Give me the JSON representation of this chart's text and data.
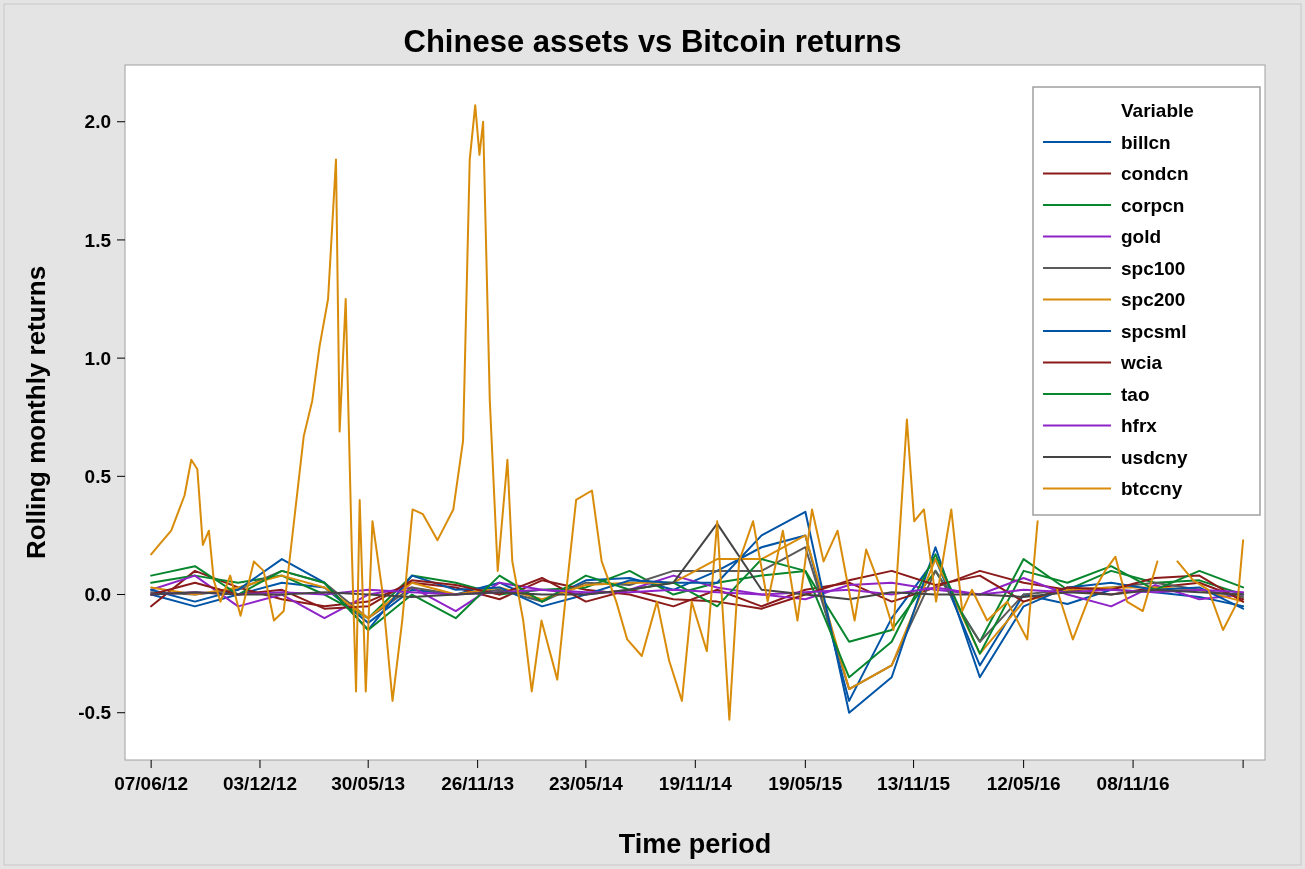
{
  "chart_data": {
    "type": "line",
    "title": "Chinese assets vs Bitcoin returns",
    "xlabel": "Time period",
    "ylabel": "Rolling monthly returns",
    "legend_title": "Variable",
    "legend": "top right",
    "grid": false,
    "marker": "none",
    "line_style": "solid",
    "xlim": [
      "2012-04-25",
      "2017-06-13"
    ],
    "ylim": [
      -0.7,
      2.24
    ],
    "xticks": [
      {
        "value": "2012-06-07",
        "label": "07/06/12"
      },
      {
        "value": "2012-12-03",
        "label": "03/12/12"
      },
      {
        "value": "2013-05-30",
        "label": "30/05/13"
      },
      {
        "value": "2013-11-26",
        "label": "26/11/13"
      },
      {
        "value": "2014-05-23",
        "label": "23/05/14"
      },
      {
        "value": "2014-11-19",
        "label": "19/11/14"
      },
      {
        "value": "2015-05-19",
        "label": "19/05/15"
      },
      {
        "value": "2015-11-13",
        "label": "13/11/15"
      },
      {
        "value": "2016-05-12",
        "label": "12/05/16"
      },
      {
        "value": "2016-11-08",
        "label": "08/11/16"
      },
      {
        "value": "2017-05-08",
        "label": null
      }
    ],
    "yticks": [
      -0.5,
      {
        "value": 0,
        "label": "0.0"
      },
      0.5,
      {
        "value": 1,
        "label": "1.0"
      },
      1.5,
      {
        "value": 2,
        "label": "2.0"
      }
    ],
    "x": [
      "2012-06-07",
      "2012-08-18",
      "2012-10-28",
      "2013-01-08",
      "2013-03-19",
      "2013-05-30",
      "2013-08-10",
      "2013-10-21",
      "2014-01-01",
      "2014-03-12",
      "2014-05-23",
      "2014-08-03",
      "2014-10-14",
      "2014-12-25",
      "2015-03-08",
      "2015-05-19",
      "2015-07-30",
      "2015-10-08",
      "2015-12-19",
      "2016-03-01",
      "2016-05-12",
      "2016-07-23",
      "2016-10-03",
      "2016-12-14",
      "2017-02-25",
      "2017-05-08"
    ],
    "series": [
      {
        "name": "billcn",
        "color": "#0054a6",
        "values": [
          0.0,
          -0.05,
          0.0,
          0.05,
          0.03,
          -0.12,
          0.02,
          0.0,
          0.05,
          -0.03,
          0.06,
          0.07,
          0.02,
          0.1,
          0.2,
          0.25,
          -0.45,
          -0.1,
          0.15,
          -0.3,
          0.0,
          -0.04,
          0.02,
          0.01,
          -0.01,
          -0.05
        ]
      },
      {
        "name": "condcn",
        "color": "#8b1a1a",
        "values": [
          -0.05,
          0.1,
          0.03,
          -0.02,
          -0.05,
          -0.03,
          0.05,
          0.03,
          -0.02,
          0.06,
          0.02,
          0.0,
          -0.05,
          0.02,
          -0.05,
          0.02,
          0.05,
          -0.03,
          0.03,
          0.1,
          0.05,
          0.02,
          0.0,
          0.03,
          0.05,
          -0.02
        ]
      },
      {
        "name": "corpcn",
        "color": "#08862d",
        "values": [
          0.05,
          0.08,
          0.05,
          0.08,
          0.0,
          -0.1,
          0.08,
          0.05,
          0.0,
          0.02,
          0.03,
          0.1,
          0.0,
          0.05,
          0.08,
          0.1,
          -0.2,
          -0.15,
          0.1,
          -0.2,
          0.15,
          0.02,
          0.1,
          0.05,
          0.06,
          0.0
        ]
      },
      {
        "name": "gold",
        "color": "#8e24c8",
        "values": [
          0.02,
          0.08,
          -0.05,
          0.0,
          -0.1,
          0.0,
          0.03,
          -0.07,
          0.05,
          0.02,
          0.0,
          0.02,
          0.08,
          0.03,
          0.0,
          -0.02,
          0.04,
          0.05,
          0.02,
          0.0,
          0.07,
          0.0,
          -0.05,
          0.04,
          -0.02,
          0.0
        ]
      },
      {
        "name": "spc100",
        "color": "#5a5a5a",
        "values": [
          0.01,
          0.0,
          0.02,
          0.1,
          0.05,
          -0.1,
          0.03,
          0.0,
          0.02,
          -0.03,
          0.05,
          0.04,
          0.1,
          0.1,
          0.1,
          0.2,
          -0.4,
          -0.3,
          0.1,
          -0.2,
          0.0,
          0.02,
          0.03,
          0.05,
          0.02,
          -0.01
        ]
      },
      {
        "name": "spc200",
        "color": "#d98c0a",
        "values": [
          0.03,
          0.0,
          0.03,
          0.08,
          0.03,
          -0.1,
          0.05,
          0.0,
          0.03,
          -0.02,
          0.04,
          0.05,
          0.05,
          0.15,
          0.15,
          0.25,
          -0.4,
          -0.3,
          0.15,
          -0.25,
          -0.03,
          0.02,
          0.03,
          0.03,
          0.02,
          -0.03
        ]
      },
      {
        "name": "spcsml",
        "color": "#0054a6",
        "values": [
          0.02,
          -0.03,
          0.02,
          0.15,
          0.05,
          -0.15,
          0.08,
          0.02,
          0.03,
          -0.05,
          0.0,
          0.06,
          0.05,
          0.05,
          0.25,
          0.35,
          -0.5,
          -0.35,
          0.2,
          -0.35,
          -0.05,
          0.03,
          0.05,
          0.02,
          0.03,
          -0.06
        ]
      },
      {
        "name": "wcia",
        "color": "#8b1a1a",
        "values": [
          0.0,
          0.05,
          0.0,
          0.02,
          -0.06,
          -0.05,
          0.06,
          0.04,
          0.0,
          0.07,
          -0.03,
          0.02,
          -0.02,
          -0.03,
          -0.06,
          0.0,
          0.06,
          0.1,
          0.04,
          0.08,
          -0.03,
          0.03,
          0.02,
          0.07,
          0.08,
          -0.03
        ]
      },
      {
        "name": "tao",
        "color": "#08862d",
        "values": [
          0.08,
          0.12,
          0.0,
          0.1,
          0.05,
          -0.15,
          0.0,
          -0.1,
          0.08,
          -0.03,
          0.08,
          0.02,
          0.05,
          -0.05,
          0.15,
          0.1,
          -0.35,
          -0.2,
          0.17,
          -0.25,
          0.1,
          0.05,
          0.12,
          0.02,
          0.1,
          0.03
        ]
      },
      {
        "name": "hfrx",
        "color": "#8e24c8",
        "values": [
          0.0,
          0.01,
          0.0,
          0.01,
          0.0,
          0.02,
          0.01,
          0.0,
          0.01,
          0.02,
          0.01,
          0.01,
          0.02,
          0.01,
          0.0,
          0.01,
          0.02,
          0.0,
          0.03,
          0.0,
          0.02,
          0.01,
          0.02,
          0.01,
          0.02,
          0.01
        ]
      },
      {
        "name": "usdcny",
        "color": "#444444",
        "values": [
          0.0,
          0.01,
          0.0,
          0.0,
          0.01,
          0.0,
          -0.01,
          0.0,
          0.01,
          0.0,
          0.0,
          0.02,
          0.05,
          0.3,
          0.02,
          0.0,
          -0.02,
          0.01,
          0.0,
          0.0,
          -0.01,
          0.01,
          0.0,
          0.02,
          0.01,
          0.0
        ]
      },
      {
        "name": "btccny",
        "color": "#d98c0a",
        "x": [
          "2012-06-07",
          "2012-06-20",
          "2012-07-10",
          "2012-08-01",
          "2012-08-12",
          "2012-08-22",
          "2012-08-31",
          "2012-09-10",
          "2012-09-18",
          "2012-09-29",
          "2012-10-15",
          "2012-11-01",
          "2012-11-23",
          "2012-12-09",
          "2012-12-26",
          "2013-01-11",
          "2013-01-28",
          "2013-02-13",
          "2013-02-27",
          "2013-03-11",
          "2013-03-25",
          "2013-04-07",
          "2013-04-13",
          "2013-04-23",
          "2013-05-03",
          "2013-05-10",
          "2013-05-16",
          "2013-05-26",
          "2013-06-06",
          "2013-06-22",
          "2013-07-09",
          "2013-07-25",
          "2013-08-11",
          "2013-08-28",
          "2013-09-21",
          "2013-10-17",
          "2013-11-02",
          "2013-11-13",
          "2013-11-22",
          "2013-11-29",
          "2013-12-05",
          "2013-12-16",
          "2013-12-29",
          "2014-01-14",
          "2014-01-22",
          "2014-02-09",
          "2014-02-23",
          "2014-03-11",
          "2014-04-06",
          "2014-04-21",
          "2014-05-07",
          "2014-06-02",
          "2014-06-18",
          "2014-07-12",
          "2014-07-30",
          "2014-08-23",
          "2014-09-17",
          "2014-10-07",
          "2014-10-28",
          "2014-11-13",
          "2014-12-08",
          "2014-12-25",
          "2015-01-14",
          "2015-01-30",
          "2015-02-22",
          "2015-03-18",
          "2015-04-12",
          "2015-05-06",
          "2015-05-30",
          "2015-06-18",
          "2015-07-11",
          "2015-08-08",
          "2015-08-27",
          "2015-09-21",
          "2015-10-11",
          "2015-11-02",
          "2015-11-14",
          "2015-11-30",
          "2015-12-20",
          "2016-01-14",
          "2016-02-01",
          "2016-02-17",
          "2016-03-13",
          "2016-04-15",
          "2016-05-18",
          "2016-06-04",
          "2016-06-15",
          "2016-07-06",
          "2016-08-01",
          "2016-08-25",
          "2016-09-23",
          "2016-10-10",
          "2016-10-29",
          "2016-11-24",
          "2016-12-18",
          "2017-01-03",
          "2017-01-20",
          "2017-02-15",
          "2017-03-12",
          "2017-04-05",
          "2017-04-29",
          "2017-05-08"
        ],
        "values": [
          0.17,
          0.21,
          0.27,
          0.42,
          0.57,
          0.53,
          0.21,
          0.27,
          0.06,
          -0.03,
          0.08,
          -0.09,
          0.14,
          0.1,
          -0.11,
          -0.07,
          0.31,
          0.67,
          0.82,
          1.05,
          1.25,
          1.84,
          0.69,
          1.25,
          0.19,
          -0.41,
          0.4,
          -0.41,
          0.31,
          0.02,
          -0.45,
          -0.11,
          0.36,
          0.34,
          0.23,
          0.36,
          0.65,
          1.84,
          2.07,
          1.86,
          2.0,
          0.82,
          0.1,
          0.57,
          0.14,
          -0.11,
          -0.41,
          -0.11,
          -0.36,
          0.02,
          0.4,
          0.44,
          0.14,
          -0.03,
          -0.19,
          -0.26,
          -0.03,
          -0.28,
          -0.45,
          -0.03,
          -0.24,
          0.31,
          -0.53,
          0.14,
          0.31,
          -0.03,
          0.27,
          -0.11,
          0.36,
          0.14,
          0.27,
          -0.11,
          0.19,
          0.02,
          -0.15,
          0.74,
          0.31,
          0.36,
          -0.03,
          0.36,
          -0.07,
          0.02,
          -0.11,
          -0.03,
          -0.19,
          0.31,
          null,
          0.02,
          -0.19,
          -0.03,
          0.1,
          0.16,
          -0.03,
          -0.07,
          0.14,
          null,
          0.14,
          0.06,
          0.02,
          -0.15,
          -0.03,
          0.23
        ]
      }
    ]
  }
}
